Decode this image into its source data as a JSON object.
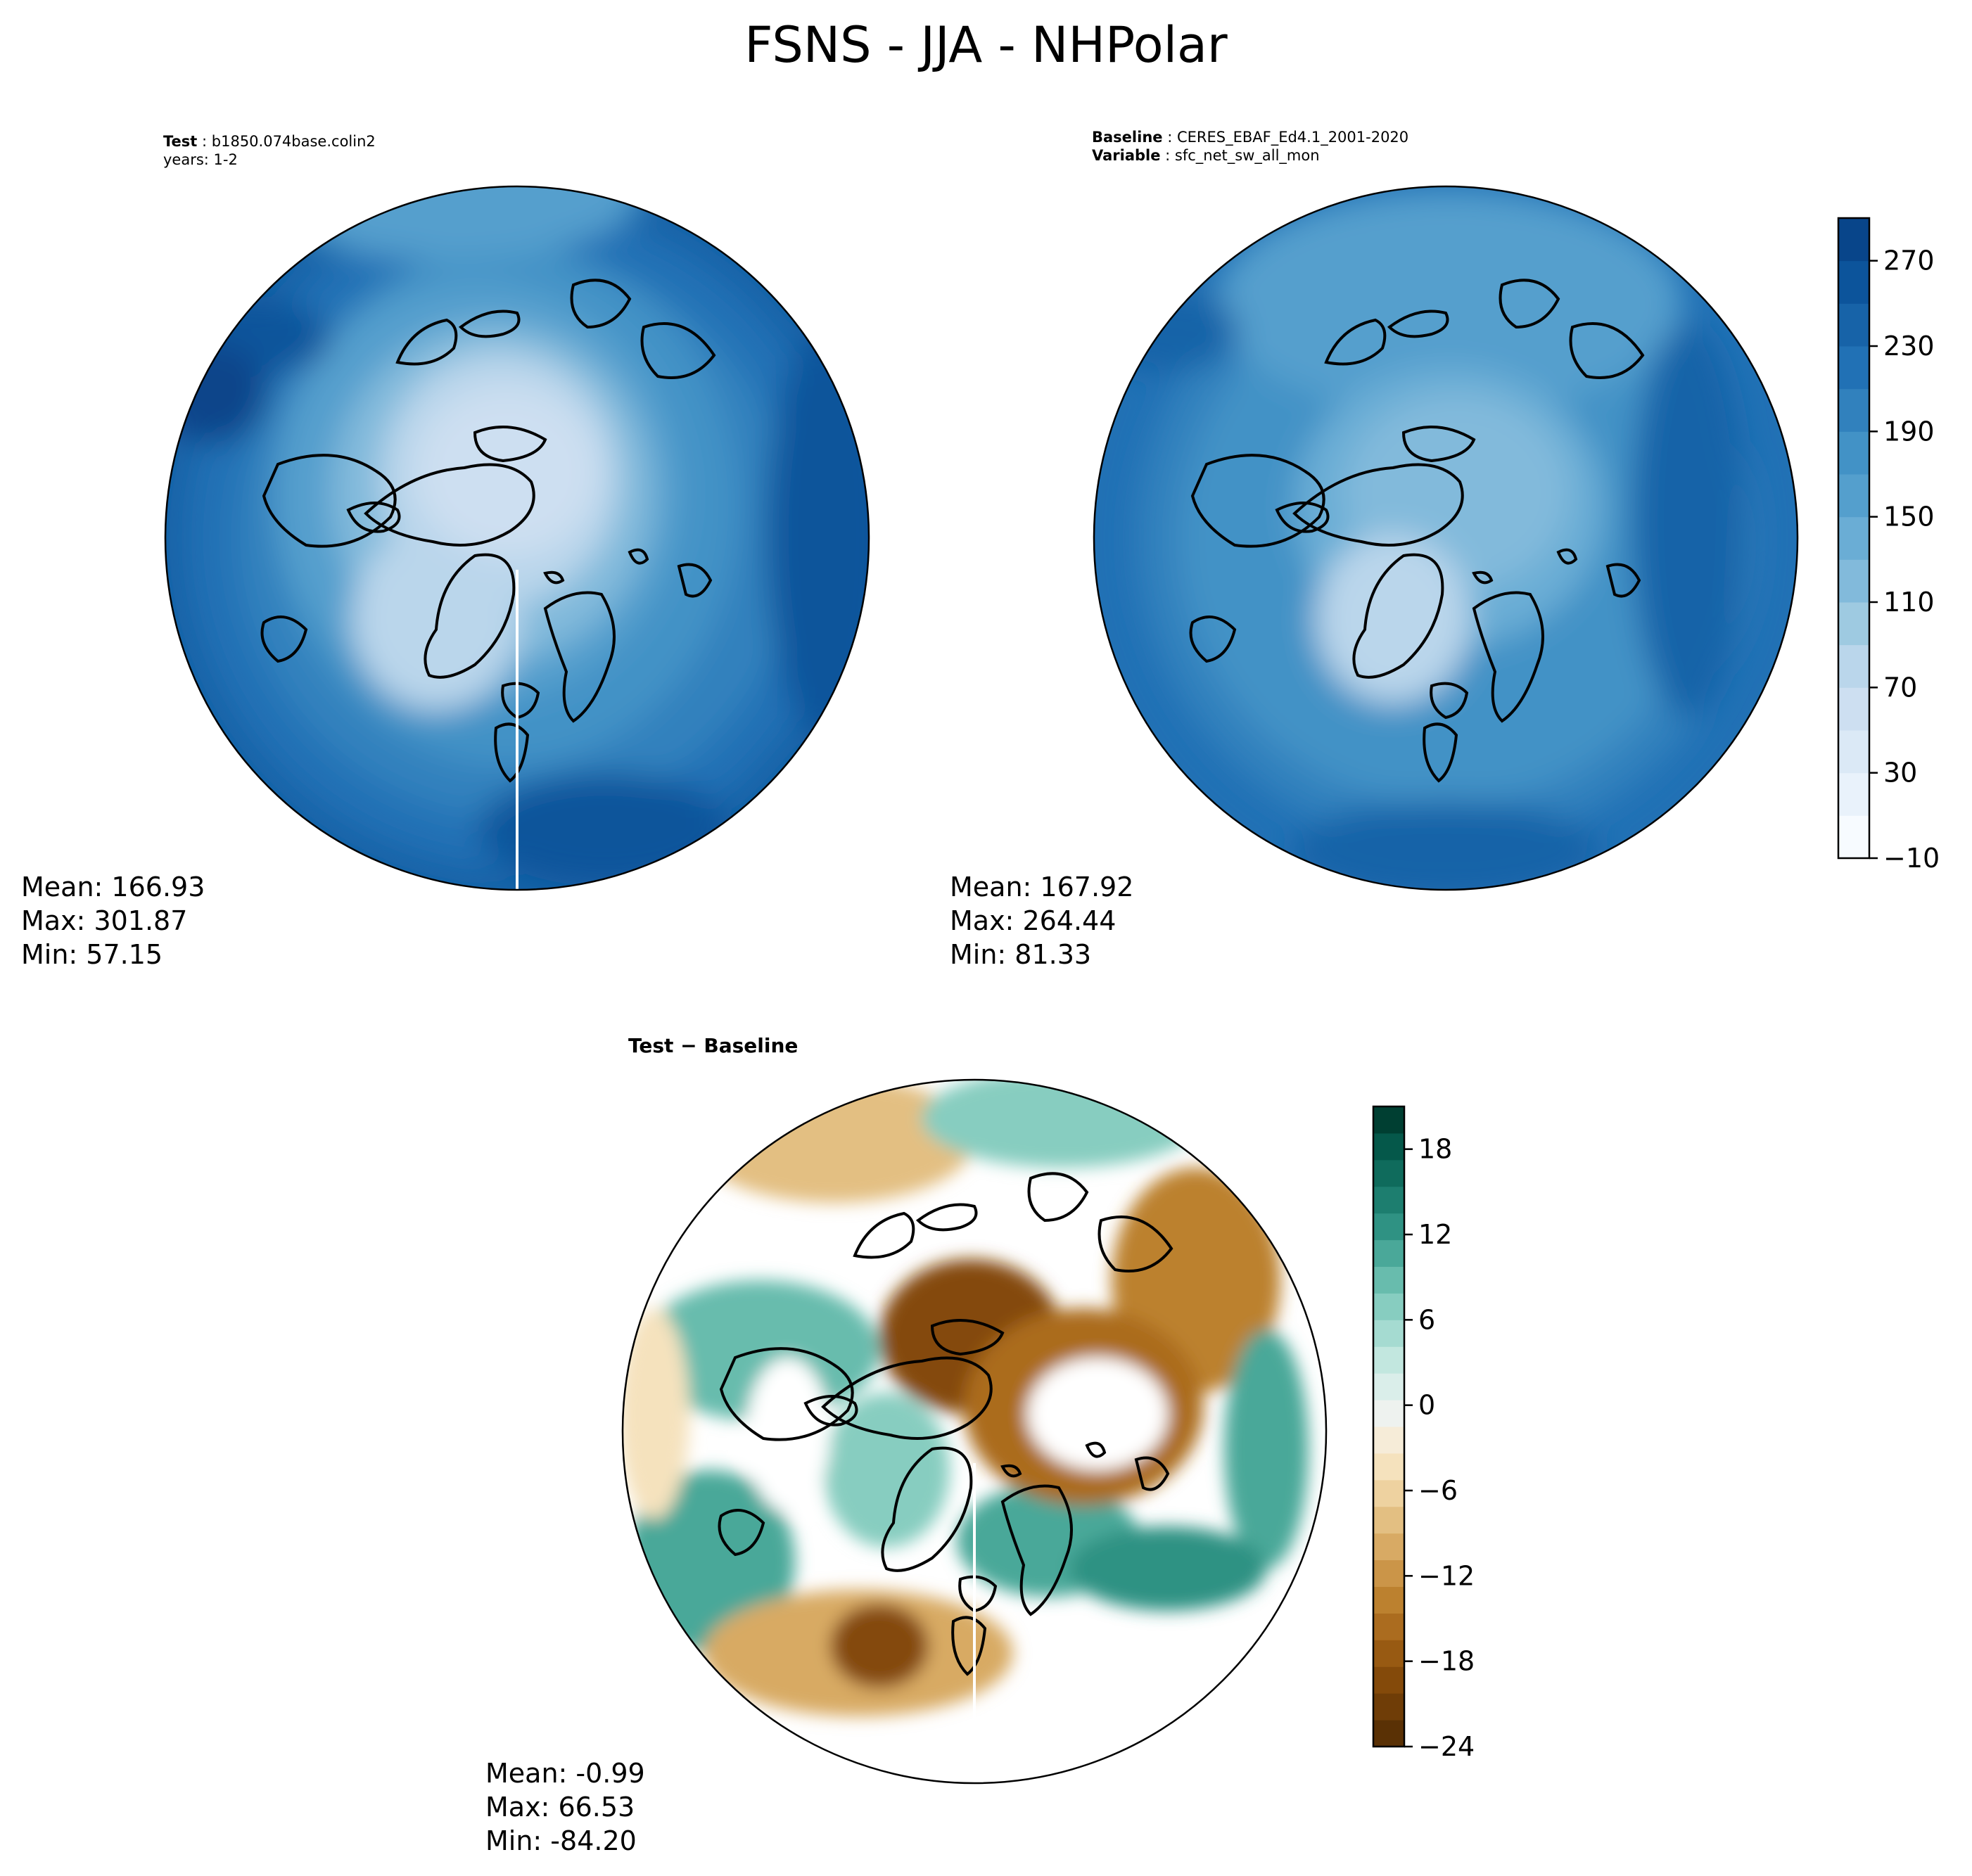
{
  "title": "FSNS - JJA - NHPolar",
  "panels": {
    "test": {
      "label_bold": "Test",
      "label_value": "b1850.074base.colin2",
      "line2": "years: 1-2",
      "stats": {
        "mean": "Mean: 166.93",
        "max": "Max: 301.87",
        "min": "Min: 57.15"
      }
    },
    "baseline": {
      "label_bold": "Baseline",
      "label_value": "CERES_EBAF_Ed4.1_2001-2020",
      "var_bold": "Variable",
      "var_value": "sfc_net_sw_all_mon",
      "stats": {
        "mean": "Mean: 167.92",
        "max": "Max: 264.44",
        "min": "Min: 81.33"
      }
    },
    "diff": {
      "label": "Test − Baseline",
      "stats": {
        "mean": "Mean: -0.99",
        "max": "Max: 66.53",
        "min": "Min: -84.20"
      }
    }
  },
  "colorbars": {
    "top": {
      "range": [
        -10,
        290
      ],
      "ticks": [
        -10,
        30,
        70,
        110,
        150,
        190,
        230,
        270
      ],
      "tick_labels": [
        "−10",
        "30",
        "70",
        "110",
        "150",
        "190",
        "230",
        "270"
      ],
      "colors": [
        "#f7fbff",
        "#e9f2fb",
        "#dbe9f6",
        "#cddff1",
        "#bad6eb",
        "#9ecae1",
        "#82badb",
        "#6aadd5",
        "#549fcd",
        "#4292c6",
        "#3181bd",
        "#2171b5",
        "#1763a8",
        "#0c549b",
        "#08458a"
      ]
    },
    "diff": {
      "range": [
        -24,
        21
      ],
      "ticks": [
        -24,
        -18,
        -12,
        -6,
        0,
        6,
        12,
        18
      ],
      "tick_labels": [
        "−24",
        "−18",
        "−12",
        "−6",
        "0",
        "6",
        "12",
        "18"
      ],
      "colors": [
        "#5a3105",
        "#6f3d07",
        "#844a0a",
        "#985a12",
        "#ab6c1f",
        "#bc812f",
        "#cb9548",
        "#d8aa64",
        "#e3bf82",
        "#eed2a0",
        "#f5e2bd",
        "#f6ecd8",
        "#eef2ef",
        "#daeeea",
        "#c2e7df",
        "#a5dbd1",
        "#87cdc0",
        "#68bcad",
        "#4aa899",
        "#2f9283",
        "#1d7e6f",
        "#0f6b5c",
        "#05584a",
        "#003f32"
      ]
    }
  }
}
